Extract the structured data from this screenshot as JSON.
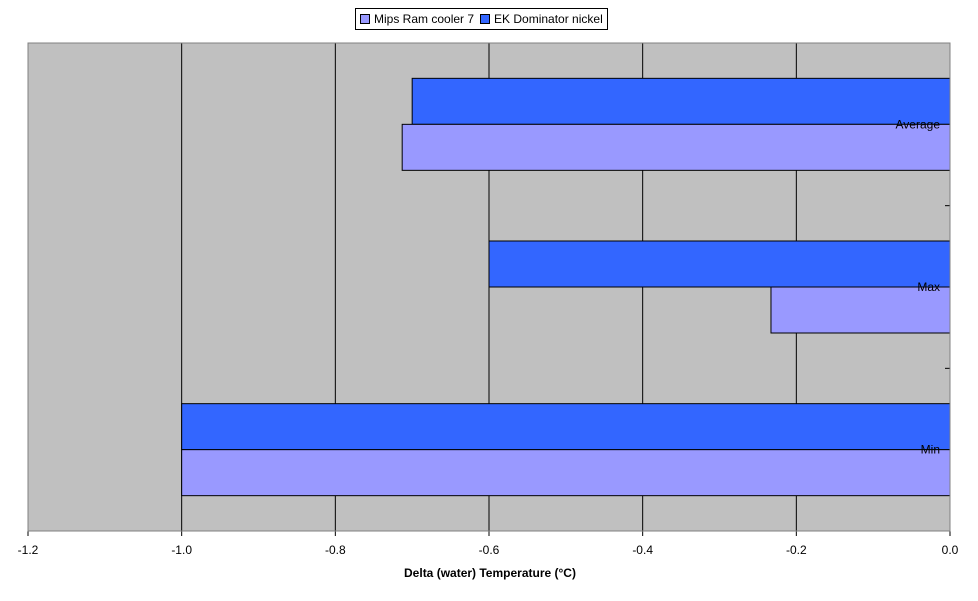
{
  "chart_data": {
    "type": "bar",
    "orientation": "horizontal",
    "categories": [
      "Average",
      "Max",
      "Min"
    ],
    "series": [
      {
        "name": "Mips Ram cooler 7",
        "values": [
          -0.713,
          -0.233,
          -1.0
        ],
        "color": "#9999ff"
      },
      {
        "name": "EK Dominator nickel",
        "values": [
          -0.7,
          -0.6,
          -1.0
        ],
        "color": "#3366ff"
      }
    ],
    "xlabel": "Delta (water) Temperature (°C)",
    "xlim": [
      -1.2,
      0.0
    ],
    "x_ticks": [
      "-1.2",
      "-1.0",
      "-0.8",
      "-0.6",
      "-0.4",
      "-0.2",
      "0.0"
    ],
    "grid": "vertical",
    "legend_position": "top-center",
    "plot_background": "#c0c0c0"
  }
}
